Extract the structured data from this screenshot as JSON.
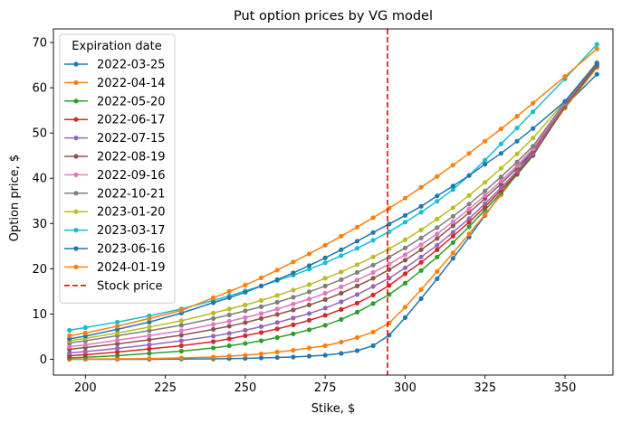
{
  "chart_data": {
    "type": "line",
    "title": "Put option prices by VG model",
    "xlabel": "Stike, $",
    "ylabel": "Option price, $",
    "xlim": [
      190,
      365
    ],
    "ylim": [
      -3.5,
      73
    ],
    "xticks": [
      200,
      225,
      250,
      275,
      300,
      325,
      350
    ],
    "yticks": [
      0,
      10,
      20,
      30,
      40,
      50,
      60,
      70
    ],
    "grid": false,
    "legend": {
      "title": "Expiration date",
      "position": "upper-left"
    },
    "x": [
      195,
      200,
      210,
      220,
      230,
      240,
      245,
      250,
      255,
      260,
      265,
      270,
      275,
      280,
      285,
      290,
      295,
      300,
      305,
      310,
      315,
      320,
      325,
      330,
      335,
      340,
      350,
      360
    ],
    "series": [
      {
        "name": "2022-03-25",
        "color": "#1f77b4",
        "values": [
          0.0,
          0.0,
          0.0,
          0.0,
          0.05,
          0.1,
          0.15,
          0.2,
          0.3,
          0.4,
          0.5,
          0.7,
          0.9,
          1.3,
          1.9,
          3.0,
          5.3,
          9.2,
          13.4,
          17.8,
          22.3,
          27.0,
          31.8,
          36.5,
          41.4,
          46.2,
          56.0,
          63.0
        ]
      },
      {
        "name": "2022-04-14",
        "color": "#ff7f0e",
        "values": [
          0.0,
          0.05,
          0.1,
          0.15,
          0.3,
          0.5,
          0.7,
          0.9,
          1.2,
          1.6,
          2.0,
          2.5,
          3.0,
          3.8,
          4.8,
          6.0,
          8.0,
          11.5,
          15.4,
          19.4,
          23.5,
          27.7,
          32.0,
          36.3,
          41.0,
          45.6,
          55.5,
          64.5
        ]
      },
      {
        "name": "2022-05-20",
        "color": "#2ca02c",
        "values": [
          0.3,
          0.45,
          0.8,
          1.3,
          1.8,
          2.5,
          3.0,
          3.5,
          4.1,
          4.8,
          5.6,
          6.5,
          7.5,
          8.8,
          10.4,
          12.3,
          14.3,
          16.8,
          19.6,
          22.6,
          25.8,
          29.3,
          33.0,
          36.8,
          40.8,
          45.0,
          55.8,
          64.8
        ]
      },
      {
        "name": "2022-06-17",
        "color": "#d62728",
        "values": [
          0.8,
          1.0,
          1.6,
          2.3,
          3.0,
          3.9,
          4.5,
          5.2,
          5.9,
          6.7,
          7.6,
          8.6,
          9.7,
          11.0,
          12.4,
          14.2,
          16.3,
          18.9,
          21.4,
          24.2,
          27.2,
          30.3,
          33.7,
          37.4,
          41.1,
          45.2,
          56.0,
          65.0
        ]
      },
      {
        "name": "2022-07-15",
        "color": "#9467bd",
        "values": [
          1.4,
          1.7,
          2.4,
          3.2,
          4.1,
          5.1,
          5.7,
          6.4,
          7.2,
          8.1,
          9.1,
          10.1,
          11.3,
          12.7,
          14.3,
          16.1,
          17.9,
          20.2,
          22.6,
          25.2,
          28.1,
          31.1,
          34.4,
          37.9,
          41.6,
          45.5,
          56.2,
          65.2
        ]
      },
      {
        "name": "2022-08-19",
        "color": "#8c564b",
        "values": [
          2.2,
          2.6,
          3.4,
          4.3,
          5.3,
          6.6,
          7.3,
          8.1,
          9.0,
          9.9,
          10.9,
          12.0,
          13.2,
          14.6,
          16.2,
          17.9,
          19.8,
          21.9,
          24.2,
          26.7,
          29.5,
          32.4,
          35.5,
          38.8,
          42.3,
          46.1,
          56.4,
          65.3
        ]
      },
      {
        "name": "2022-09-16",
        "color": "#e377c2",
        "values": [
          2.8,
          3.2,
          4.2,
          5.2,
          6.3,
          7.7,
          8.4,
          9.2,
          10.1,
          11.1,
          12.2,
          13.3,
          14.6,
          16.0,
          17.5,
          19.2,
          21.0,
          23.1,
          25.3,
          27.7,
          30.4,
          33.2,
          36.2,
          39.4,
          42.8,
          46.5,
          56.6,
          65.4
        ]
      },
      {
        "name": "2022-10-21",
        "color": "#7f7f7f",
        "values": [
          3.6,
          4.1,
          5.2,
          6.3,
          7.5,
          9.0,
          9.8,
          10.7,
          11.6,
          12.6,
          13.7,
          14.9,
          16.2,
          17.6,
          19.2,
          20.8,
          22.6,
          24.6,
          26.8,
          29.1,
          31.6,
          34.3,
          37.2,
          40.3,
          43.6,
          47.1,
          56.8,
          65.5
        ]
      },
      {
        "name": "2023-01-20",
        "color": "#bcbd22",
        "values": [
          4.1,
          4.6,
          5.8,
          7.1,
          8.5,
          10.2,
          11.1,
          12.0,
          13.0,
          14.1,
          15.3,
          16.5,
          17.9,
          19.3,
          20.9,
          22.6,
          24.4,
          26.4,
          28.6,
          31.0,
          33.5,
          36.2,
          39.1,
          42.2,
          45.4,
          48.9,
          57.0,
          65.6
        ]
      },
      {
        "name": "2023-03-17",
        "color": "#17becf",
        "values": [
          6.4,
          7.0,
          8.2,
          9.6,
          11.1,
          13.0,
          14.0,
          15.1,
          16.2,
          17.4,
          18.6,
          19.9,
          21.3,
          22.9,
          24.5,
          26.3,
          28.2,
          30.3,
          32.5,
          34.9,
          37.5,
          40.6,
          44.0,
          47.6,
          51.1,
          54.7,
          62.0,
          69.6
        ]
      },
      {
        "name": "2023-06-16",
        "color": "#1f77b4",
        "values": [
          4.5,
          5.1,
          6.6,
          8.2,
          10.2,
          12.5,
          13.6,
          14.8,
          16.2,
          17.6,
          19.1,
          20.7,
          22.4,
          24.2,
          26.1,
          28.0,
          29.9,
          31.8,
          33.8,
          36.1,
          38.3,
          40.6,
          43.1,
          45.5,
          48.2,
          51.0,
          57.0,
          65.4
        ]
      },
      {
        "name": "2024-01-19",
        "color": "#ff7f0e",
        "values": [
          5.2,
          5.8,
          7.3,
          9.0,
          10.8,
          13.6,
          15.0,
          16.4,
          18.0,
          19.7,
          21.5,
          23.3,
          25.2,
          27.2,
          29.2,
          31.3,
          33.4,
          35.6,
          38.0,
          40.4,
          42.9,
          45.5,
          48.2,
          50.9,
          53.7,
          56.6,
          62.5,
          68.6
        ]
      }
    ],
    "vline": {
      "x": 294.5,
      "label": "Stock price",
      "color": "#ff0000",
      "style": "dashed"
    }
  }
}
